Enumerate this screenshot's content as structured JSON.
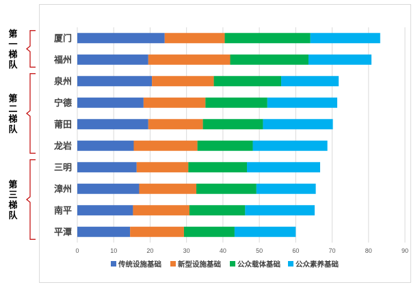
{
  "chart_data": {
    "type": "bar",
    "orientation": "horizontal",
    "stacked": true,
    "categories": [
      "厦门",
      "福州",
      "泉州",
      "宁德",
      "莆田",
      "龙岩",
      "三明",
      "漳州",
      "南平",
      "平潭"
    ],
    "series": [
      {
        "name": "传统设施基础",
        "color": "#4472c4",
        "values": [
          24,
          19.5,
          20.5,
          18.2,
          19.5,
          15.5,
          16.3,
          17.0,
          15.3,
          14.5
        ]
      },
      {
        "name": "新型设施基础",
        "color": "#ed7d31",
        "values": [
          16.5,
          22.5,
          17.0,
          17.0,
          15.0,
          17.5,
          14.2,
          15.7,
          15.5,
          14.8
        ]
      },
      {
        "name": "公众载体基础",
        "color": "#00b050",
        "values": [
          23.5,
          21.5,
          18.5,
          17.0,
          16.5,
          15.2,
          16.1,
          16.5,
          15.3,
          13.9
        ]
      },
      {
        "name": "公众素养基础",
        "color": "#00b0f0",
        "values": [
          19.2,
          17.3,
          15.8,
          19.2,
          19.2,
          20.5,
          20.1,
          16.3,
          19.1,
          16.8
        ]
      }
    ],
    "xlim": [
      0,
      90
    ],
    "xticks": [
      0,
      10,
      20,
      30,
      40,
      50,
      60,
      70,
      80,
      90
    ],
    "grid": true,
    "legend_position": "bottom",
    "tiers": [
      {
        "label": [
          "第",
          "一",
          "梯",
          "队"
        ],
        "start": 0,
        "end": 1
      },
      {
        "label": [
          "第",
          "二",
          "梯",
          "队"
        ],
        "start": 2,
        "end": 5
      },
      {
        "label": [
          "第",
          "三",
          "梯",
          "队"
        ],
        "start": 6,
        "end": 9
      }
    ]
  }
}
